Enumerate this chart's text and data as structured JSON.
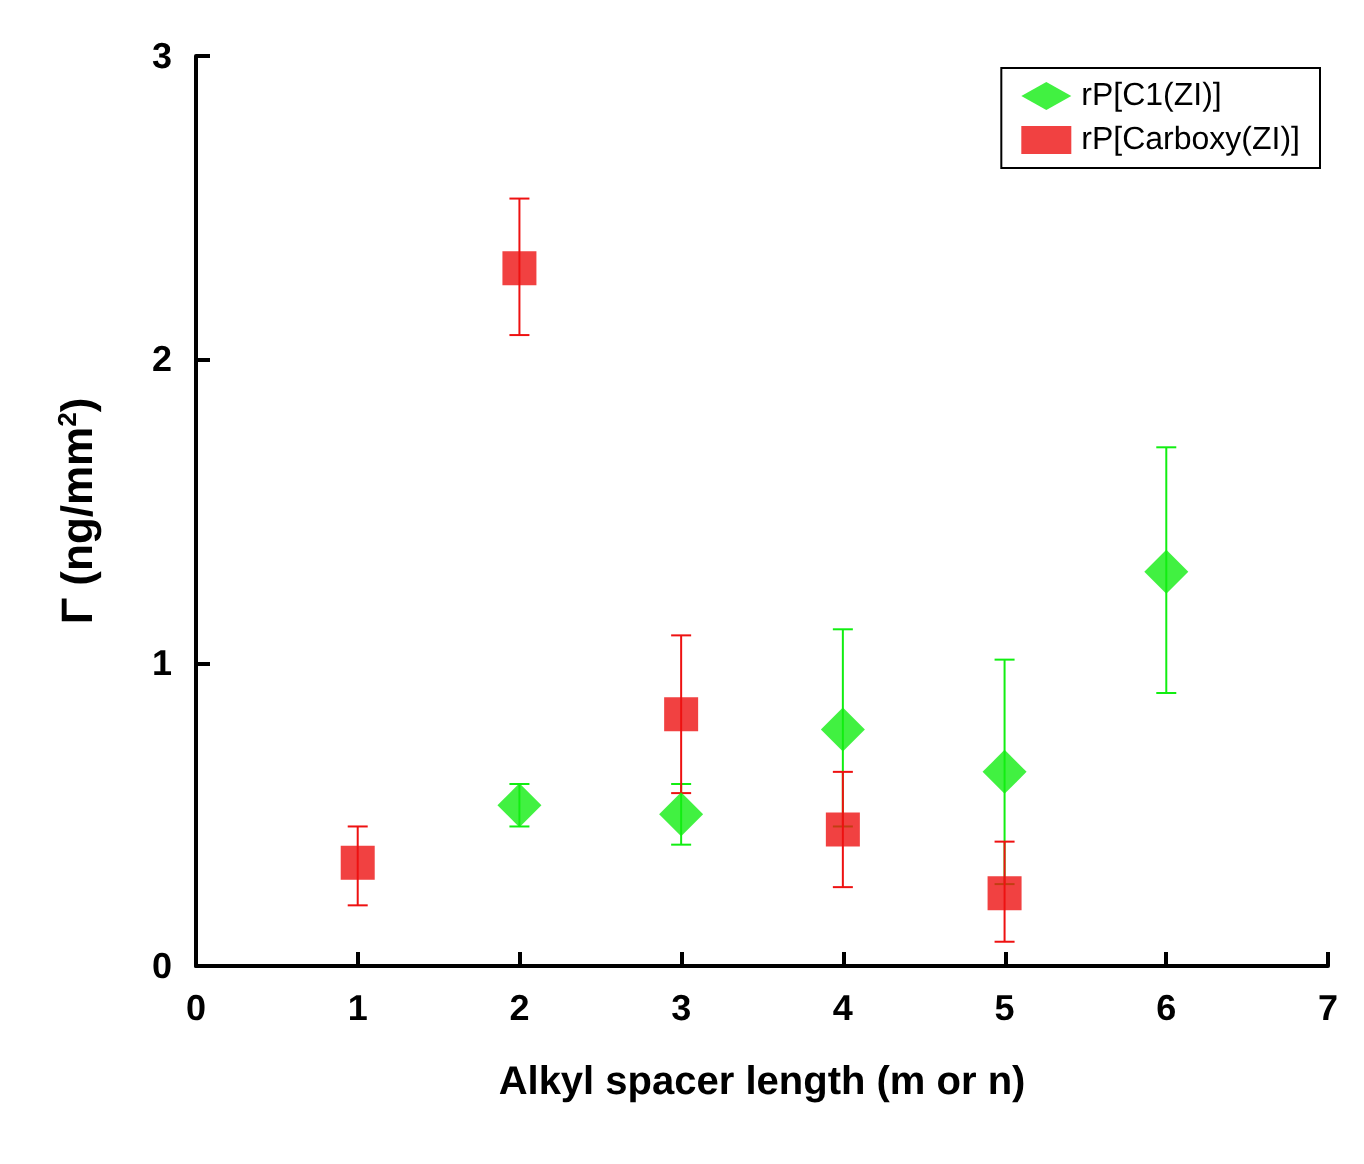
{
  "chart_data": {
    "type": "scatter",
    "xlabel": "Alkyl spacer length (m or n)",
    "ylabel": "Γ (ng/mm$^{2}$)",
    "xlim": [
      0,
      7
    ],
    "xticks": [
      0,
      1,
      2,
      3,
      4,
      5,
      6,
      7
    ],
    "ylim": [
      0,
      3
    ],
    "yticks": [
      0,
      1,
      2,
      3
    ],
    "grid": false,
    "legend": "top right",
    "series": [
      {
        "name": "rP[C1(ZI)]",
        "color": "#11ee11",
        "marker": "diamond",
        "x": [
          2,
          3,
          4,
          5,
          6
        ],
        "values": [
          0.53,
          0.5,
          0.78,
          0.64,
          1.3
        ],
        "errors": [
          [
            0.46,
            0.6
          ],
          [
            0.4,
            0.6
          ],
          [
            0.46,
            1.11
          ],
          [
            0.27,
            1.01
          ],
          [
            0.9,
            1.71
          ]
        ]
      },
      {
        "name": "rP[Carboxy(ZI)]",
        "color": "#ee1111",
        "marker": "square",
        "x": [
          1,
          2,
          3,
          4,
          5
        ],
        "values": [
          0.34,
          2.3,
          0.83,
          0.45,
          0.24
        ],
        "errors": [
          [
            0.2,
            0.46
          ],
          [
            2.08,
            2.53
          ],
          [
            0.57,
            1.09
          ],
          [
            0.26,
            0.64
          ],
          [
            0.08,
            0.41
          ]
        ]
      }
    ]
  }
}
